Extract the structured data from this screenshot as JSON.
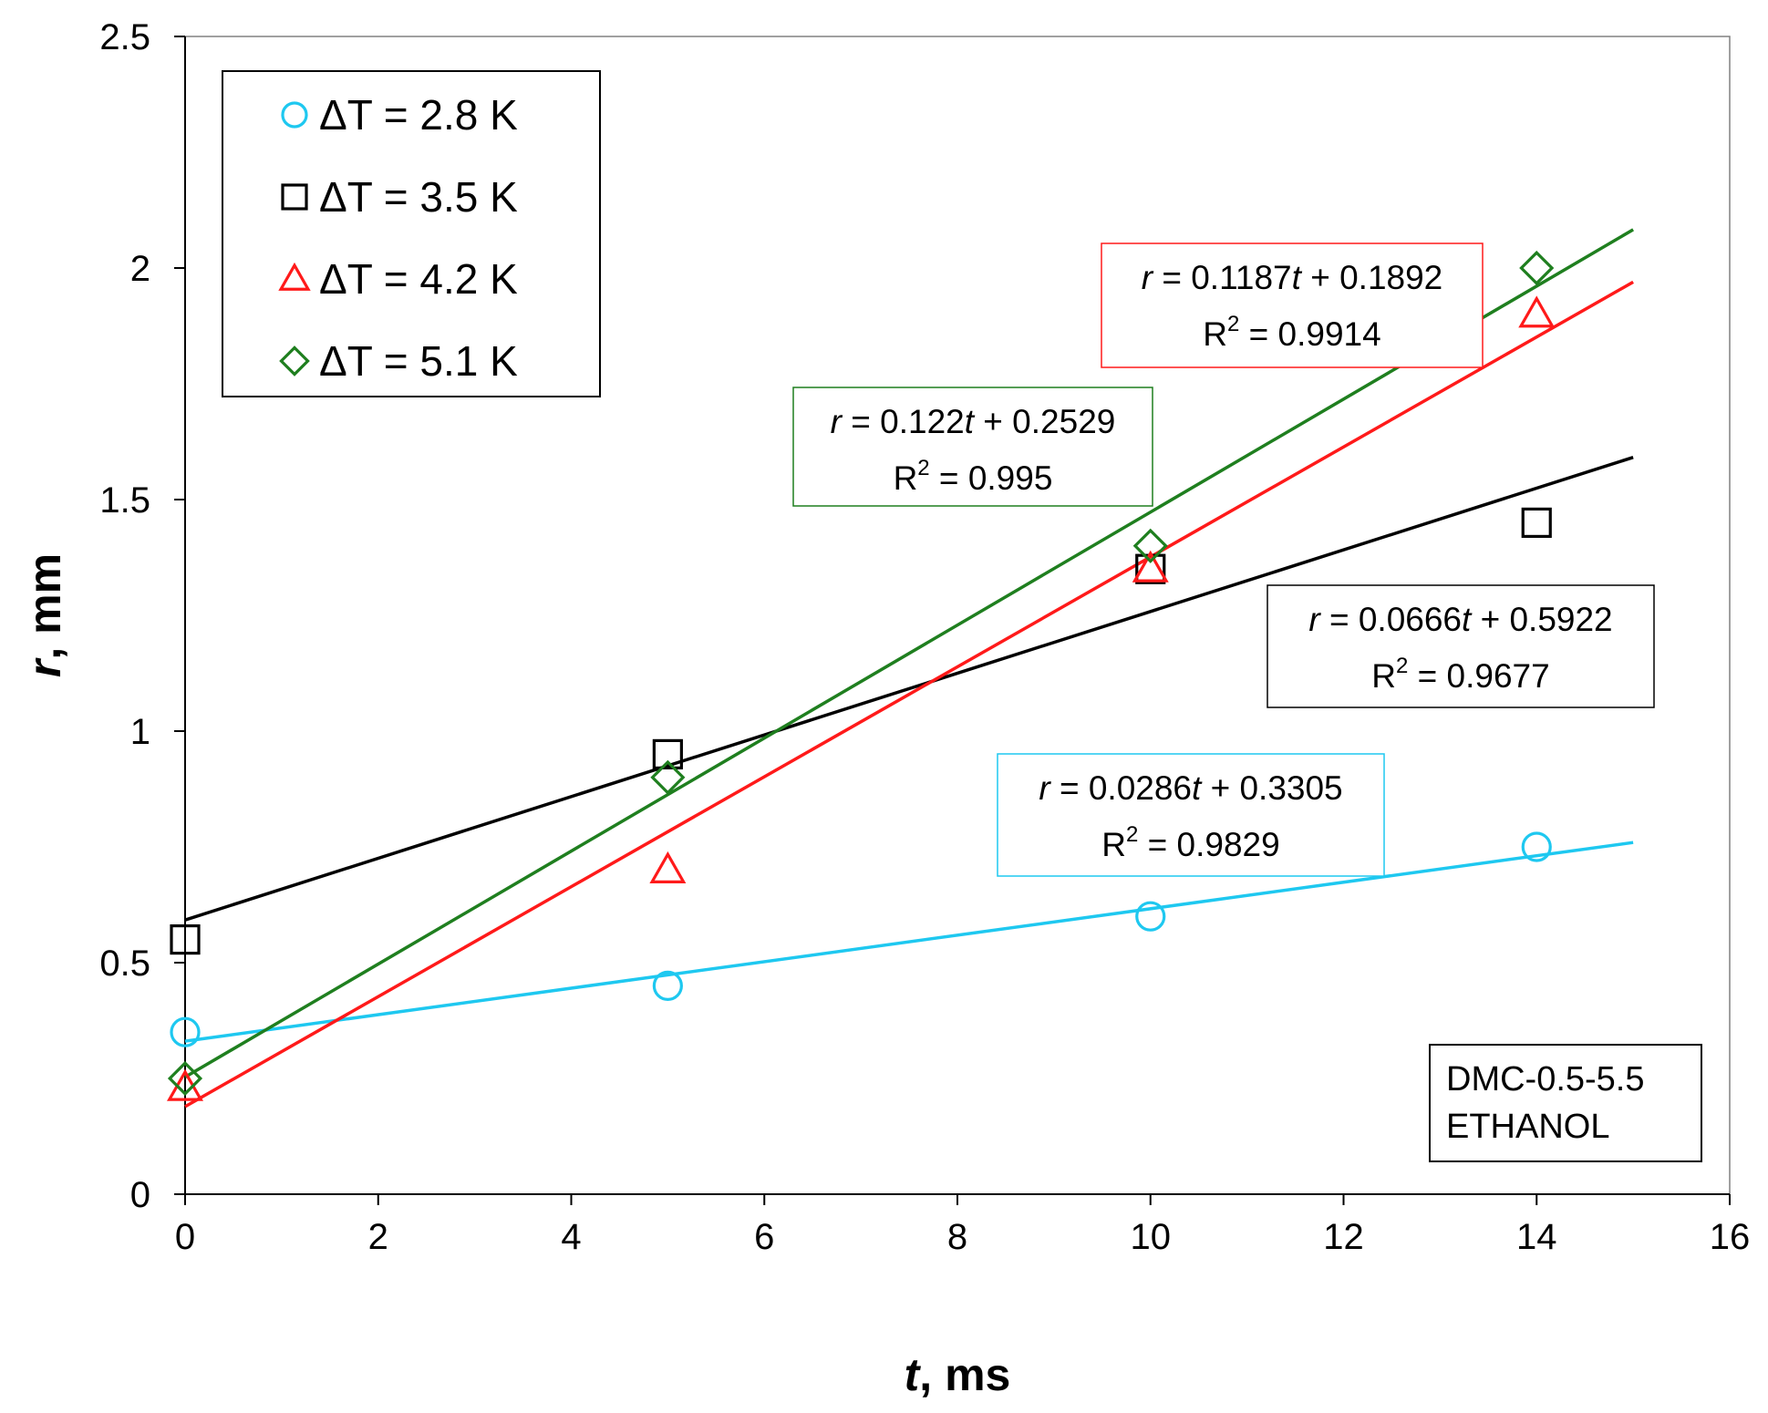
{
  "chart_data": {
    "type": "scatter",
    "xlabel": {
      "var": "t",
      "unit": ", ms"
    },
    "ylabel": {
      "var": "r",
      "unit": ", mm"
    },
    "xlim": [
      0,
      16
    ],
    "ylim": [
      0,
      2.5
    ],
    "x_ticks": [
      "0",
      "2",
      "4",
      "6",
      "8",
      "10",
      "12",
      "14",
      "16"
    ],
    "y_ticks": [
      "0",
      "0.5",
      "1",
      "1.5",
      "2",
      "2.5"
    ],
    "grid": false,
    "legend_position": "top-left",
    "series": [
      {
        "name": "ΔT = 2.8 K",
        "marker": "circle",
        "color": "#1EC8F0",
        "x": [
          0,
          5,
          10,
          14
        ],
        "y": [
          0.35,
          0.45,
          0.6,
          0.75
        ],
        "fit": {
          "slope": 0.0286,
          "intercept": 0.3305,
          "x_range": [
            0,
            15
          ],
          "eq_a": "0.0286",
          "eq_b": "0.3305",
          "r2": "0.9829"
        }
      },
      {
        "name": "ΔT = 3.5 K",
        "marker": "square",
        "color": "#000000",
        "x": [
          0,
          5,
          10,
          14
        ],
        "y": [
          0.55,
          0.95,
          1.35,
          1.45
        ],
        "fit": {
          "slope": 0.0666,
          "intercept": 0.5922,
          "x_range": [
            0,
            15
          ],
          "eq_a": "0.0666",
          "eq_b": "0.5922",
          "r2": "0.9677"
        }
      },
      {
        "name": "ΔT = 4.2 K",
        "marker": "triangle",
        "color": "#FF1A1A",
        "x": [
          0,
          5,
          10,
          14
        ],
        "y": [
          0.23,
          0.7,
          1.35,
          1.9
        ],
        "fit": {
          "slope": 0.1187,
          "intercept": 0.1892,
          "x_range": [
            0,
            15
          ],
          "eq_a": "0.1187",
          "eq_b": "0.1892",
          "r2": "0.9914"
        }
      },
      {
        "name": "ΔT = 5.1 K",
        "marker": "diamond",
        "color": "#1F7F1F",
        "x": [
          0,
          5,
          10,
          14
        ],
        "y": [
          0.25,
          0.9,
          1.4,
          2.0
        ],
        "fit": {
          "slope": 0.122,
          "intercept": 0.2529,
          "x_range": [
            0,
            15
          ],
          "eq_a": "0.122",
          "eq_b": "0.2529",
          "r2": "0.995"
        }
      }
    ],
    "annotation": [
      "DMC-0.5-5.5",
      "ETHANOL"
    ]
  }
}
